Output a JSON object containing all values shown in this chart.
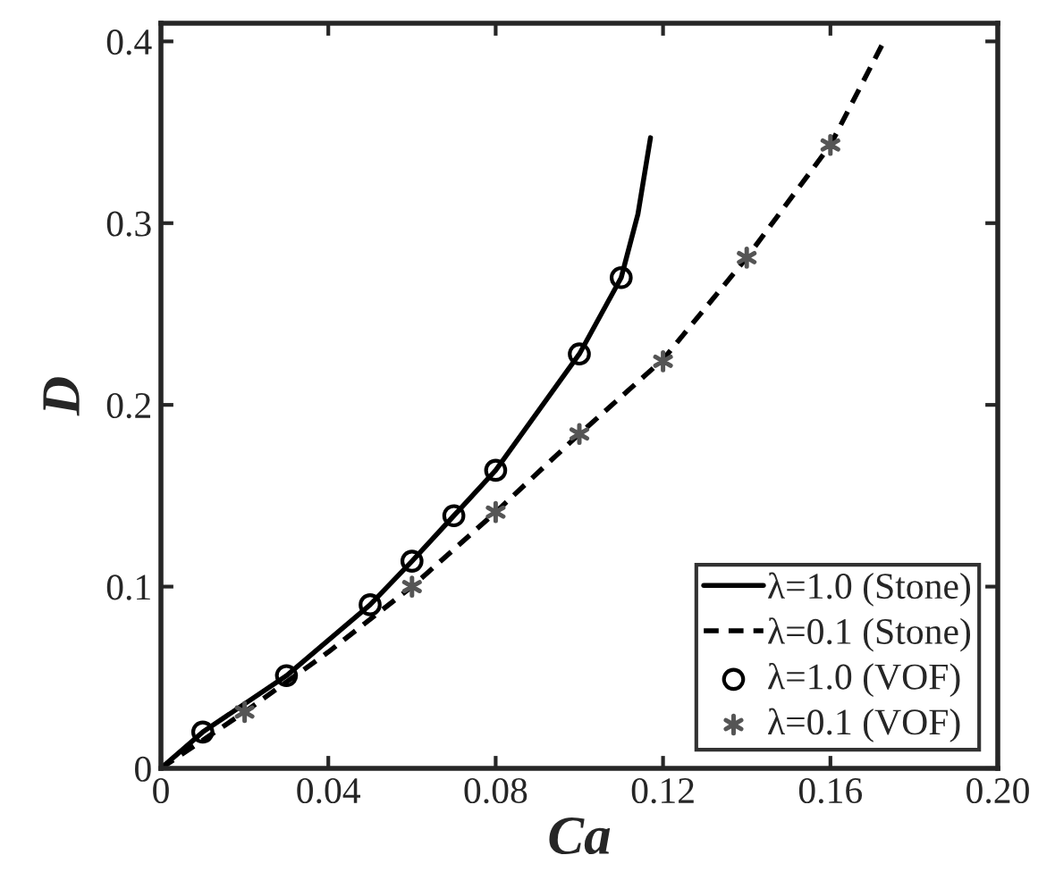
{
  "chart_data": {
    "type": "line",
    "xlabel": "Ca",
    "ylabel": "D",
    "xlim": [
      0,
      0.2
    ],
    "xticks": [
      0,
      0.04,
      0.08,
      0.12,
      0.16,
      {
        "value": 0.2,
        "label": "0.20"
      }
    ],
    "ylim": [
      0,
      0.41
    ],
    "yticks": [
      0,
      0.1,
      0.2,
      0.3,
      0.4
    ],
    "grid": false,
    "legend": "bottom right",
    "series": [
      {
        "name": "λ=1.0 (Stone)",
        "color": "#000000",
        "line_style": "solid",
        "marker": "none",
        "x": [
          0,
          0.01,
          0.03,
          0.05,
          0.06,
          0.07,
          0.08,
          0.1,
          0.11,
          0.114,
          0.117
        ],
        "values": [
          0,
          0.02,
          0.051,
          0.09,
          0.114,
          0.139,
          0.164,
          0.228,
          0.27,
          0.305,
          0.347
        ]
      },
      {
        "name": "λ=0.1 (Stone)",
        "color": "#000000",
        "line_style": "dashed",
        "marker": "none",
        "x": [
          0,
          0.02,
          0.04,
          0.06,
          0.08,
          0.1,
          0.12,
          0.14,
          0.16,
          0.173
        ],
        "values": [
          0,
          0.031,
          0.064,
          0.1,
          0.141,
          0.184,
          0.225,
          0.281,
          0.343,
          0.401
        ]
      },
      {
        "name": "λ=1.0 (VOF)",
        "type": "scatter",
        "color": "#000000",
        "marker": "circle",
        "x": [
          0.01,
          0.03,
          0.05,
          0.06,
          0.07,
          0.08,
          0.1,
          0.11
        ],
        "values": [
          0.02,
          0.051,
          0.09,
          0.114,
          0.139,
          0.164,
          0.228,
          0.27
        ]
      },
      {
        "name": "λ=0.1 (VOF)",
        "type": "scatter",
        "color": "#555555",
        "marker": "cross",
        "x": [
          0.02,
          0.06,
          0.08,
          0.1,
          0.12,
          0.14,
          0.16
        ],
        "values": [
          0.031,
          0.1,
          0.141,
          0.184,
          0.224,
          0.281,
          0.343
        ]
      }
    ]
  }
}
